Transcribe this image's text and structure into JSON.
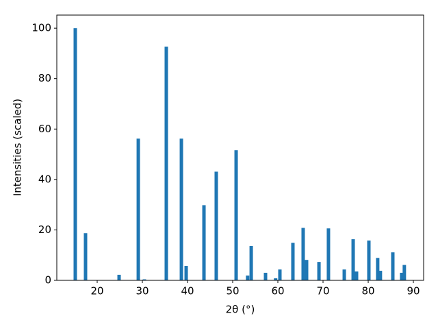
{
  "chart_data": {
    "type": "bar",
    "xlabel": "2θ (°)",
    "ylabel": "Intensities (scaled)",
    "x": [
      15.15,
      17.42,
      24.85,
      29.1,
      30.45,
      35.3,
      38.64,
      39.7,
      43.64,
      46.36,
      50.76,
      53.3,
      54.1,
      57.27,
      59.5,
      60.45,
      63.33,
      65.6,
      66.36,
      69.1,
      71.2,
      74.7,
      76.67,
      77.42,
      80.15,
      82.1,
      82.7,
      85.45,
      87.4,
      88.0
    ],
    "values": [
      100,
      18.7,
      2.2,
      56.2,
      0.4,
      92.7,
      56.2,
      5.7,
      29.8,
      43.1,
      51.6,
      1.9,
      13.6,
      3.0,
      0.8,
      4.3,
      14.9,
      20.8,
      8.1,
      7.3,
      20.6,
      4.3,
      16.3,
      3.5,
      15.8,
      8.9,
      3.8,
      11.1,
      3.0,
      6.1
    ],
    "color": "#1f77b4",
    "xlim": [
      11.06,
      92.27
    ],
    "xticks": [
      20,
      30,
      40,
      50,
      60,
      70,
      80,
      90
    ],
    "ylim": [
      0,
      105.2
    ],
    "yticks": [
      0,
      20,
      40,
      60,
      80,
      100
    ],
    "grid": false
  }
}
